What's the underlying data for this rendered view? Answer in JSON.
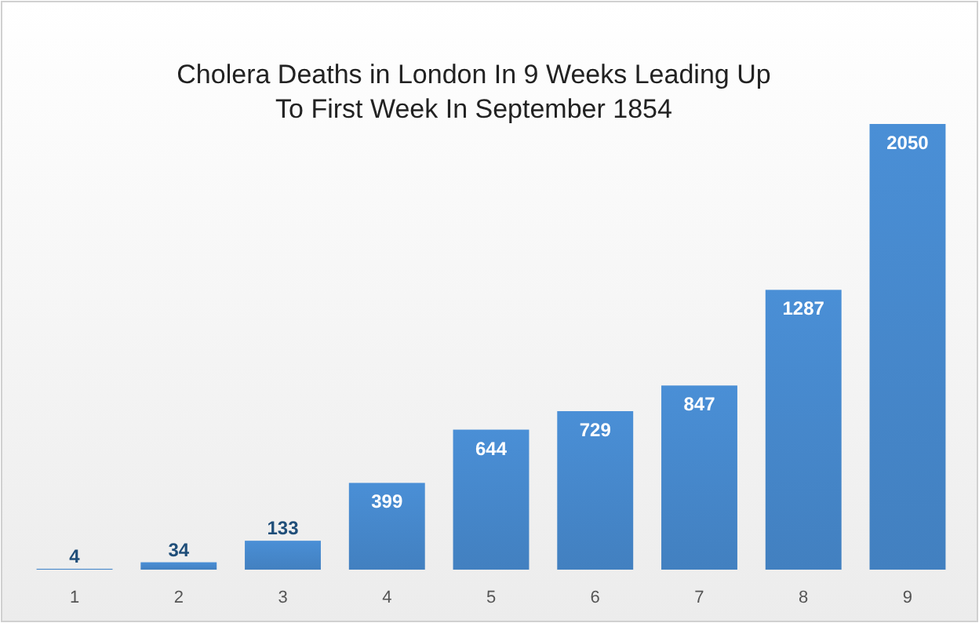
{
  "chart_data": {
    "type": "bar",
    "title": "Cholera Deaths in London In 9 Weeks Leading Up To First Week In September 1854",
    "categories": [
      "1",
      "2",
      "3",
      "4",
      "5",
      "6",
      "7",
      "8",
      "9"
    ],
    "values": [
      4,
      34,
      133,
      399,
      644,
      729,
      847,
      1287,
      2050
    ],
    "color": "#4a8fd6",
    "data_labels": true
  }
}
